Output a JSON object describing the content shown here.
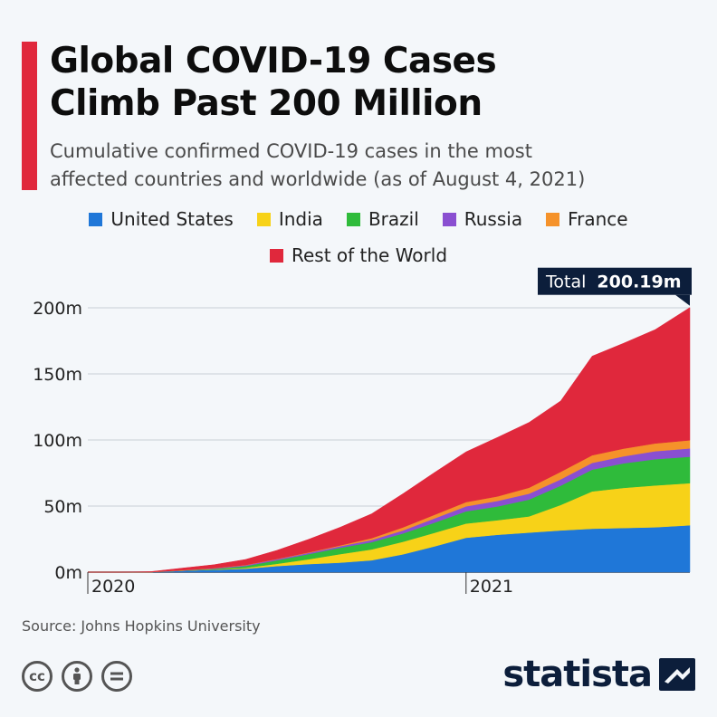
{
  "header": {
    "title_line1": "Global COVID-19 Cases",
    "title_line2": "Climb Past 200 Million",
    "subtitle_line1": "Cumulative confirmed COVID-19 cases in the most",
    "subtitle_line2": "affected countries and worldwide (as of August 4, 2021)"
  },
  "legend": [
    {
      "label": "United States",
      "color": "#1f77d8"
    },
    {
      "label": "India",
      "color": "#f7d218"
    },
    {
      "label": "Brazil",
      "color": "#2fbb3b"
    },
    {
      "label": "Russia",
      "color": "#8a4fd1"
    },
    {
      "label": "France",
      "color": "#f5922a"
    },
    {
      "label": "Rest of the World",
      "color": "#e0283c"
    }
  ],
  "annotation": {
    "prefix": "Total",
    "value": "200.19m"
  },
  "chart_data": {
    "type": "area",
    "stacked": true,
    "title": "Global COVID-19 Cases Climb Past 200 Million",
    "xlabel": "",
    "ylabel": "",
    "ylim": [
      0,
      200
    ],
    "y_ticks": [
      0,
      50,
      100,
      150,
      200
    ],
    "y_tick_labels": [
      "0m",
      "50m",
      "100m",
      "150m",
      "200m"
    ],
    "x_tick_labels": [
      "2020",
      "2021"
    ],
    "x_tick_months": [
      0,
      12
    ],
    "x_months": [
      0,
      1,
      2,
      3,
      4,
      5,
      6,
      7,
      8,
      9,
      10,
      11,
      12,
      13,
      14,
      15,
      16,
      17,
      18,
      19.1
    ],
    "series": [
      {
        "name": "United States",
        "color": "#1f77d8",
        "values": [
          0,
          0,
          0.1,
          1.1,
          1.8,
          2.6,
          4.6,
          6.1,
          7.2,
          9.0,
          13.5,
          19.5,
          26.0,
          28.3,
          29.9,
          31.6,
          32.9,
          33.4,
          34.0,
          35.5
        ]
      },
      {
        "name": "India",
        "color": "#f7d218",
        "values": [
          0,
          0,
          0,
          0,
          0.2,
          0.6,
          1.7,
          3.6,
          6.4,
          8.2,
          9.5,
          10.3,
          10.8,
          11.0,
          12.3,
          19.2,
          28.2,
          30.4,
          31.6,
          31.8
        ]
      },
      {
        "name": "Brazil",
        "color": "#2fbb3b",
        "values": [
          0,
          0,
          0,
          0.1,
          0.5,
          1.4,
          2.7,
          3.9,
          4.8,
          5.5,
          6.3,
          7.7,
          9.2,
          10.4,
          12.7,
          14.6,
          16.5,
          18.5,
          19.9,
          20.0
        ]
      },
      {
        "name": "Russia",
        "color": "#8a4fd1",
        "values": [
          0,
          0,
          0,
          0.1,
          0.4,
          0.6,
          0.8,
          1.0,
          1.2,
          1.6,
          2.3,
          3.2,
          3.8,
          4.2,
          4.5,
          4.8,
          5.1,
          5.4,
          6.0,
          6.3
        ]
      },
      {
        "name": "France",
        "color": "#f5922a",
        "values": [
          0,
          0,
          0,
          0.2,
          0.2,
          0.2,
          0.2,
          0.3,
          0.6,
          1.4,
          2.3,
          2.7,
          3.2,
          3.4,
          4.5,
          5.7,
          5.7,
          5.8,
          5.9,
          6.2
        ]
      },
      {
        "name": "Rest of the World",
        "color": "#e0283c",
        "values": [
          0,
          0,
          0.3,
          1.6,
          2.5,
          4.2,
          6.5,
          9.9,
          13.7,
          18.4,
          25.5,
          32.0,
          38.0,
          44.7,
          49.4,
          53.6,
          75.0,
          79.7,
          86.1,
          100.4
        ]
      }
    ]
  },
  "footer": {
    "source": "Source: Johns Hopkins University",
    "cc_icons": [
      "cc-icon",
      "by-icon",
      "nd-icon"
    ],
    "brand": "statista"
  }
}
